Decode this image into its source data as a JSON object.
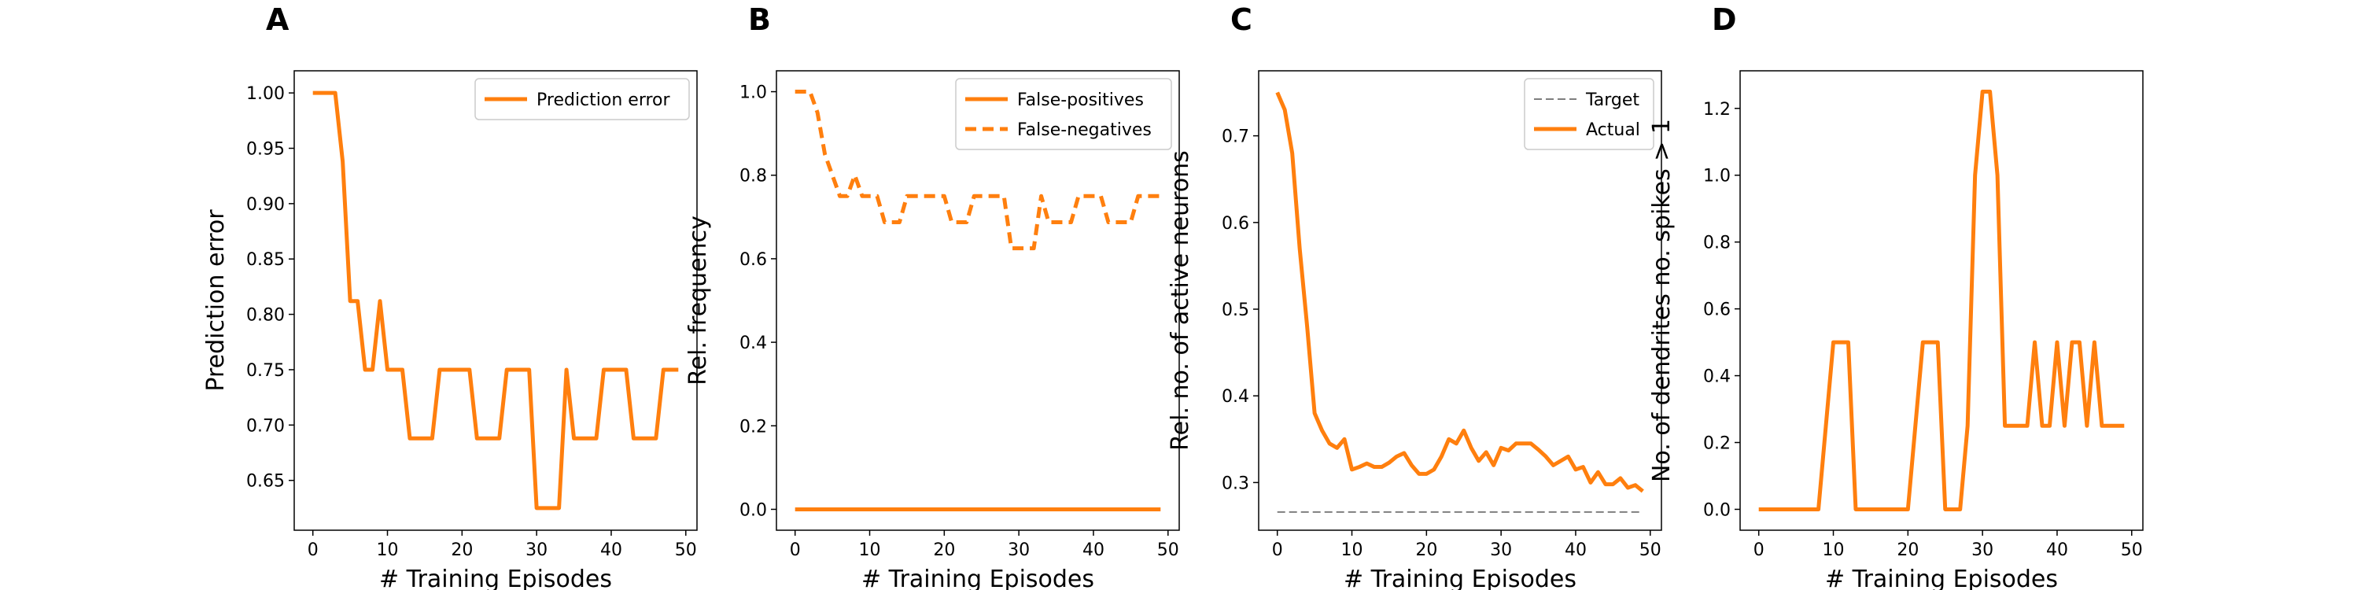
{
  "chart_data": [
    {
      "type": "line",
      "panel_label": "A",
      "xlabel": "# Training Episodes",
      "ylabel": "Prediction error",
      "xlim": [
        -2.5,
        51.5
      ],
      "ylim": [
        0.605,
        1.02
      ],
      "xticks": [
        0,
        10,
        20,
        30,
        40,
        50
      ],
      "yticks": [
        0.65,
        0.7,
        0.75,
        0.8,
        0.85,
        0.9,
        0.95,
        1.0
      ],
      "ytick_decimals": 2,
      "legend": "top-right",
      "grid": false,
      "series": [
        {
          "name": "Prediction error",
          "color": "#ff7f0e",
          "dash": "solid",
          "x": [
            0,
            1,
            2,
            3,
            4,
            5,
            6,
            7,
            8,
            9,
            10,
            11,
            12,
            13,
            14,
            15,
            16,
            17,
            18,
            19,
            20,
            21,
            22,
            23,
            24,
            25,
            26,
            27,
            28,
            29,
            30,
            31,
            32,
            33,
            34,
            35,
            36,
            37,
            38,
            39,
            40,
            41,
            42,
            43,
            44,
            45,
            46,
            47,
            48,
            49
          ],
          "y": [
            1.0,
            1.0,
            1.0,
            1.0,
            0.938,
            0.812,
            0.812,
            0.75,
            0.75,
            0.812,
            0.75,
            0.75,
            0.75,
            0.688,
            0.688,
            0.688,
            0.688,
            0.75,
            0.75,
            0.75,
            0.75,
            0.75,
            0.688,
            0.688,
            0.688,
            0.688,
            0.75,
            0.75,
            0.75,
            0.75,
            0.625,
            0.625,
            0.625,
            0.625,
            0.75,
            0.688,
            0.688,
            0.688,
            0.688,
            0.75,
            0.75,
            0.75,
            0.75,
            0.688,
            0.688,
            0.688,
            0.688,
            0.75,
            0.75,
            0.75
          ]
        }
      ]
    },
    {
      "type": "line",
      "panel_label": "B",
      "xlabel": "# Training Episodes",
      "ylabel": "Rel. frequency",
      "xlim": [
        -2.5,
        51.5
      ],
      "ylim": [
        -0.05,
        1.05
      ],
      "xticks": [
        0,
        10,
        20,
        30,
        40,
        50
      ],
      "yticks": [
        0.0,
        0.2,
        0.4,
        0.6,
        0.8,
        1.0
      ],
      "ytick_decimals": 1,
      "legend": "top-right",
      "grid": false,
      "series": [
        {
          "name": "False-positives",
          "color": "#ff7f0e",
          "dash": "solid",
          "x": [
            0,
            1,
            2,
            3,
            4,
            5,
            6,
            7,
            8,
            9,
            10,
            11,
            12,
            13,
            14,
            15,
            16,
            17,
            18,
            19,
            20,
            21,
            22,
            23,
            24,
            25,
            26,
            27,
            28,
            29,
            30,
            31,
            32,
            33,
            34,
            35,
            36,
            37,
            38,
            39,
            40,
            41,
            42,
            43,
            44,
            45,
            46,
            47,
            48,
            49
          ],
          "y": [
            0,
            0,
            0,
            0,
            0,
            0,
            0,
            0,
            0,
            0,
            0,
            0,
            0,
            0,
            0,
            0,
            0,
            0,
            0,
            0,
            0,
            0,
            0,
            0,
            0,
            0,
            0,
            0,
            0,
            0,
            0,
            0,
            0,
            0,
            0,
            0,
            0,
            0,
            0,
            0,
            0,
            0,
            0,
            0,
            0,
            0,
            0,
            0,
            0,
            0
          ]
        },
        {
          "name": "False-negatives",
          "color": "#ff7f0e",
          "dash": "dashed",
          "x": [
            0,
            1,
            2,
            3,
            4,
            5,
            6,
            7,
            8,
            9,
            10,
            11,
            12,
            13,
            14,
            15,
            16,
            17,
            18,
            19,
            20,
            21,
            22,
            23,
            24,
            25,
            26,
            27,
            28,
            29,
            30,
            31,
            32,
            33,
            34,
            35,
            36,
            37,
            38,
            39,
            40,
            41,
            42,
            43,
            44,
            45,
            46,
            47,
            48,
            49
          ],
          "y": [
            1.0,
            1.0,
            1.0,
            0.95,
            0.85,
            0.8,
            0.75,
            0.75,
            0.8,
            0.75,
            0.75,
            0.75,
            0.6875,
            0.6875,
            0.6875,
            0.75,
            0.75,
            0.75,
            0.75,
            0.75,
            0.75,
            0.6875,
            0.6875,
            0.6875,
            0.75,
            0.75,
            0.75,
            0.75,
            0.75,
            0.625,
            0.625,
            0.625,
            0.625,
            0.75,
            0.6875,
            0.6875,
            0.6875,
            0.6875,
            0.75,
            0.75,
            0.75,
            0.75,
            0.6875,
            0.6875,
            0.6875,
            0.6875,
            0.75,
            0.75,
            0.75,
            0.75
          ]
        }
      ]
    },
    {
      "type": "line",
      "panel_label": "C",
      "xlabel": "# Training Episodes",
      "ylabel": "Rel. no. of active neurons",
      "xlim": [
        -2.5,
        51.5
      ],
      "ylim": [
        0.245,
        0.775
      ],
      "xticks": [
        0,
        10,
        20,
        30,
        40,
        50
      ],
      "yticks": [
        0.3,
        0.4,
        0.5,
        0.6,
        0.7
      ],
      "ytick_decimals": 1,
      "legend": "top-right",
      "grid": false,
      "series": [
        {
          "name": "Target",
          "color": "#7f7f7f",
          "dash": "dashed-thin",
          "x": [
            0,
            49
          ],
          "y": [
            0.266,
            0.266
          ]
        },
        {
          "name": "Actual",
          "color": "#ff7f0e",
          "dash": "solid",
          "x": [
            0,
            1,
            2,
            3,
            4,
            5,
            6,
            7,
            8,
            9,
            10,
            11,
            12,
            13,
            14,
            15,
            16,
            17,
            18,
            19,
            20,
            21,
            22,
            23,
            24,
            25,
            26,
            27,
            28,
            29,
            30,
            31,
            32,
            33,
            34,
            35,
            36,
            37,
            38,
            39,
            40,
            41,
            42,
            43,
            44,
            45,
            46,
            47,
            48,
            49
          ],
          "y": [
            0.75,
            0.73,
            0.68,
            0.57,
            0.48,
            0.38,
            0.36,
            0.345,
            0.34,
            0.35,
            0.315,
            0.318,
            0.322,
            0.318,
            0.318,
            0.323,
            0.33,
            0.334,
            0.32,
            0.31,
            0.31,
            0.315,
            0.33,
            0.35,
            0.345,
            0.36,
            0.34,
            0.325,
            0.335,
            0.32,
            0.34,
            0.337,
            0.345,
            0.345,
            0.345,
            0.338,
            0.33,
            0.32,
            0.325,
            0.33,
            0.315,
            0.318,
            0.3,
            0.312,
            0.298,
            0.298,
            0.305,
            0.294,
            0.297,
            0.29
          ]
        }
      ]
    },
    {
      "type": "line",
      "panel_label": "D",
      "xlabel": "# Training Episodes",
      "ylabel": "No. of dendrites no. spikes > 1",
      "xlim": [
        -2.5,
        51.5
      ],
      "ylim": [
        -0.0625,
        1.3125
      ],
      "xticks": [
        0,
        10,
        20,
        30,
        40,
        50
      ],
      "yticks": [
        0.0,
        0.2,
        0.4,
        0.6,
        0.8,
        1.0,
        1.2
      ],
      "ytick_decimals": 1,
      "legend": "none",
      "grid": false,
      "series": [
        {
          "name": "",
          "color": "#ff7f0e",
          "dash": "solid",
          "x": [
            0,
            1,
            2,
            3,
            4,
            5,
            6,
            7,
            8,
            9,
            10,
            11,
            12,
            13,
            14,
            15,
            16,
            17,
            18,
            19,
            20,
            21,
            22,
            23,
            24,
            25,
            26,
            27,
            28,
            29,
            30,
            31,
            32,
            33,
            34,
            35,
            36,
            37,
            38,
            39,
            40,
            41,
            42,
            43,
            44,
            45,
            46,
            47,
            48,
            49
          ],
          "y": [
            0,
            0,
            0,
            0,
            0,
            0,
            0,
            0,
            0,
            0.25,
            0.5,
            0.5,
            0.5,
            0,
            0,
            0,
            0,
            0,
            0,
            0,
            0,
            0.25,
            0.5,
            0.5,
            0.5,
            0,
            0,
            0,
            0.25,
            1.0,
            1.25,
            1.25,
            1.0,
            0.25,
            0.25,
            0.25,
            0.25,
            0.5,
            0.25,
            0.25,
            0.5,
            0.25,
            0.5,
            0.5,
            0.25,
            0.5,
            0.25,
            0.25,
            0.25,
            0.25
          ]
        }
      ]
    }
  ]
}
